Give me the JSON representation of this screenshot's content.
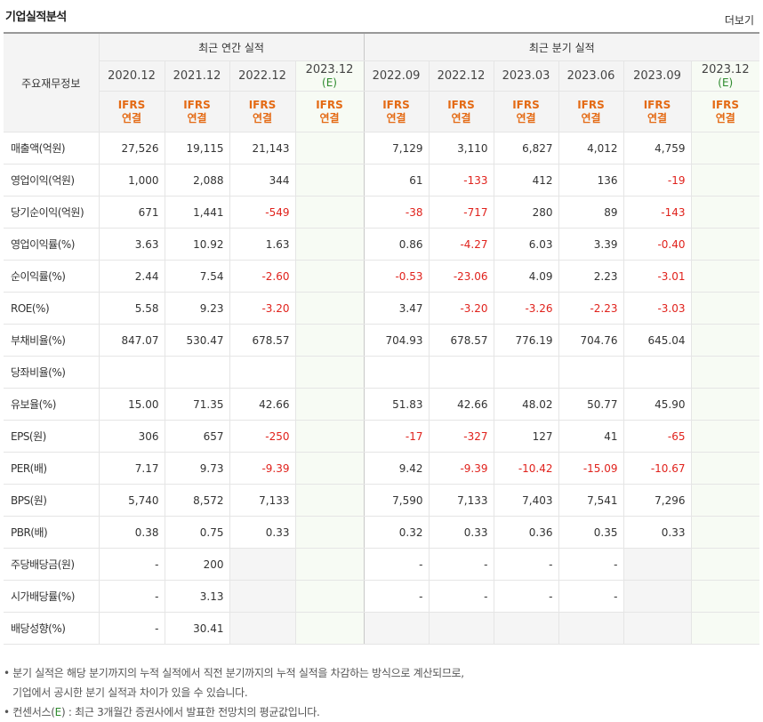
{
  "title": "기업실적분석",
  "more_label": "더보기",
  "corner_label": "주요재무정보",
  "groups": {
    "annual": "최근 연간 실적",
    "quarter": "최근 분기 실적"
  },
  "periods": [
    {
      "date": "2020.12",
      "est": ""
    },
    {
      "date": "2021.12",
      "est": ""
    },
    {
      "date": "2022.12",
      "est": ""
    },
    {
      "date": "2023.12",
      "est": "(E)"
    },
    {
      "date": "2022.09",
      "est": ""
    },
    {
      "date": "2022.12",
      "est": ""
    },
    {
      "date": "2023.03",
      "est": ""
    },
    {
      "date": "2023.06",
      "est": ""
    },
    {
      "date": "2023.09",
      "est": ""
    },
    {
      "date": "2023.12",
      "est": "(E)"
    }
  ],
  "ifrs_line1": "IFRS",
  "ifrs_line2": "연결",
  "rows": [
    {
      "label": "매출액(억원)",
      "values": [
        "27,526",
        "19,115",
        "21,143",
        "",
        "7,129",
        "3,110",
        "6,827",
        "4,012",
        "4,759",
        ""
      ]
    },
    {
      "label": "영업이익(억원)",
      "values": [
        "1,000",
        "2,088",
        "344",
        "",
        "61",
        "-133",
        "412",
        "136",
        "-19",
        ""
      ]
    },
    {
      "label": "당기순이익(억원)",
      "values": [
        "671",
        "1,441",
        "-549",
        "",
        "-38",
        "-717",
        "280",
        "89",
        "-143",
        ""
      ]
    },
    {
      "label": "영업이익률(%)",
      "values": [
        "3.63",
        "10.92",
        "1.63",
        "",
        "0.86",
        "-4.27",
        "6.03",
        "3.39",
        "-0.40",
        ""
      ]
    },
    {
      "label": "순이익률(%)",
      "values": [
        "2.44",
        "7.54",
        "-2.60",
        "",
        "-0.53",
        "-23.06",
        "4.09",
        "2.23",
        "-3.01",
        ""
      ]
    },
    {
      "label": "ROE(%)",
      "values": [
        "5.58",
        "9.23",
        "-3.20",
        "",
        "3.47",
        "-3.20",
        "-3.26",
        "-2.23",
        "-3.03",
        ""
      ]
    },
    {
      "label": "부채비율(%)",
      "values": [
        "847.07",
        "530.47",
        "678.57",
        "",
        "704.93",
        "678.57",
        "776.19",
        "704.76",
        "645.04",
        ""
      ]
    },
    {
      "label": "당좌비율(%)",
      "values": [
        "",
        "",
        "",
        "",
        "",
        "",
        "",
        "",
        "",
        ""
      ]
    },
    {
      "label": "유보율(%)",
      "values": [
        "15.00",
        "71.35",
        "42.66",
        "",
        "51.83",
        "42.66",
        "48.02",
        "50.77",
        "45.90",
        ""
      ]
    },
    {
      "label": "EPS(원)",
      "values": [
        "306",
        "657",
        "-250",
        "",
        "-17",
        "-327",
        "127",
        "41",
        "-65",
        ""
      ]
    },
    {
      "label": "PER(배)",
      "values": [
        "7.17",
        "9.73",
        "-9.39",
        "",
        "9.42",
        "-9.39",
        "-10.42",
        "-15.09",
        "-10.67",
        ""
      ]
    },
    {
      "label": "BPS(원)",
      "values": [
        "5,740",
        "8,572",
        "7,133",
        "",
        "7,590",
        "7,133",
        "7,403",
        "7,541",
        "7,296",
        ""
      ]
    },
    {
      "label": "PBR(배)",
      "values": [
        "0.38",
        "0.75",
        "0.33",
        "",
        "0.32",
        "0.33",
        "0.36",
        "0.35",
        "0.33",
        ""
      ]
    },
    {
      "label": "주당배당금(원)",
      "values": [
        "-",
        "200",
        "",
        "",
        "-",
        "-",
        "-",
        "-",
        "",
        ""
      ]
    },
    {
      "label": "시가배당률(%)",
      "values": [
        "-",
        "3.13",
        "",
        "",
        "-",
        "-",
        "-",
        "-",
        "",
        ""
      ]
    },
    {
      "label": "배당성향(%)",
      "values": [
        "-",
        "30.41",
        "",
        "",
        "",
        "",
        "",
        "",
        "",
        ""
      ]
    }
  ],
  "notes": {
    "line1": "분기 실적은 해당 분기까지의 누적 실적에서 직전 분기까지의 누적 실적을 차감하는 방식으로 계산되므로,",
    "line2": "기업에서 공시한 분기 실적과 차이가 있을 수 있습니다.",
    "line3_prefix": "컨센서스(",
    "line3_e": "E",
    "line3_suffix": ") : 최근 3개월간 증권사에서 발표한 전망치의 평균값입니다."
  },
  "colors": {
    "negative": "#e0221c",
    "ifrs": "#e46a14",
    "estimate": "#2e8b2e"
  }
}
